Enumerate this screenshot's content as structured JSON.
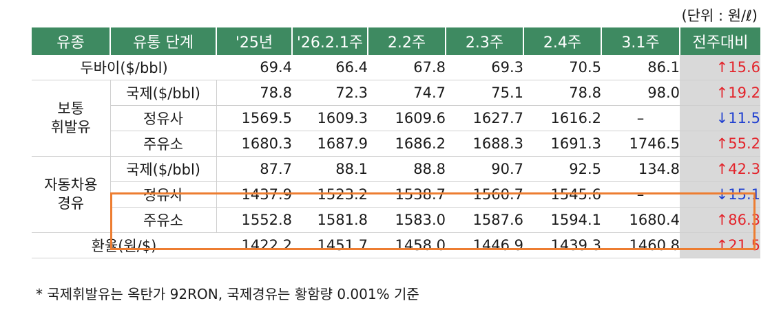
{
  "unit_note": "(단위 : 원/ℓ)",
  "headers": [
    "유종",
    "유통 단계",
    "'25년",
    "'26.2.1주",
    "2.2주",
    "2.3주",
    "2.4주",
    "3.1주",
    "전주대비"
  ],
  "rows": [
    {
      "group": "두바이($/bbl)",
      "stage": "",
      "values": [
        "69.4",
        "66.4",
        "67.8",
        "69.3",
        "70.5",
        "86.1"
      ],
      "change": "↑15.6",
      "dir": "up"
    },
    {
      "group": "보통\n휘발유",
      "stage": "국제($/bbl)",
      "values": [
        "78.8",
        "72.3",
        "74.7",
        "75.1",
        "78.8",
        "98.0"
      ],
      "change": "↑19.2",
      "dir": "up"
    },
    {
      "group": "",
      "stage": "정유사",
      "values": [
        "1569.5",
        "1609.3",
        "1609.6",
        "1627.7",
        "1616.2",
        "–"
      ],
      "change": "↓11.5",
      "dir": "down"
    },
    {
      "group": "",
      "stage": "주유소",
      "values": [
        "1680.3",
        "1687.9",
        "1686.2",
        "1688.3",
        "1691.3",
        "1746.5"
      ],
      "change": "↑55.2",
      "dir": "up"
    },
    {
      "group": "자동차용\n경유",
      "stage": "국제($/bbl)",
      "values": [
        "87.7",
        "88.1",
        "88.8",
        "90.7",
        "92.5",
        "134.8"
      ],
      "change": "↑42.3",
      "dir": "up"
    },
    {
      "group": "",
      "stage": "정유사",
      "values": [
        "1437.9",
        "1523.2",
        "1538.7",
        "1560.7",
        "1545.6",
        "–"
      ],
      "change": "↓15.1",
      "dir": "down"
    },
    {
      "group": "",
      "stage": "주유소",
      "values": [
        "1552.8",
        "1581.8",
        "1583.0",
        "1587.6",
        "1594.1",
        "1680.4"
      ],
      "change": "↑86.3",
      "dir": "up"
    },
    {
      "group": "환율(원/$)",
      "stage": "",
      "values": [
        "1422.2",
        "1451.7",
        "1458.0",
        "1446.9",
        "1439.3",
        "1460.8"
      ],
      "change": "↑21.5",
      "dir": "up"
    }
  ],
  "footnote": "* 국제휘발유는 옥탄가 92RON, 국제경유는 황함량 0.001% 기준",
  "colors": {
    "header_bg": "#3e8a61",
    "change_bg": "#d9d9d9",
    "up": "#e3242b",
    "down": "#1f3fd0",
    "highlight": "#ed7d31"
  }
}
